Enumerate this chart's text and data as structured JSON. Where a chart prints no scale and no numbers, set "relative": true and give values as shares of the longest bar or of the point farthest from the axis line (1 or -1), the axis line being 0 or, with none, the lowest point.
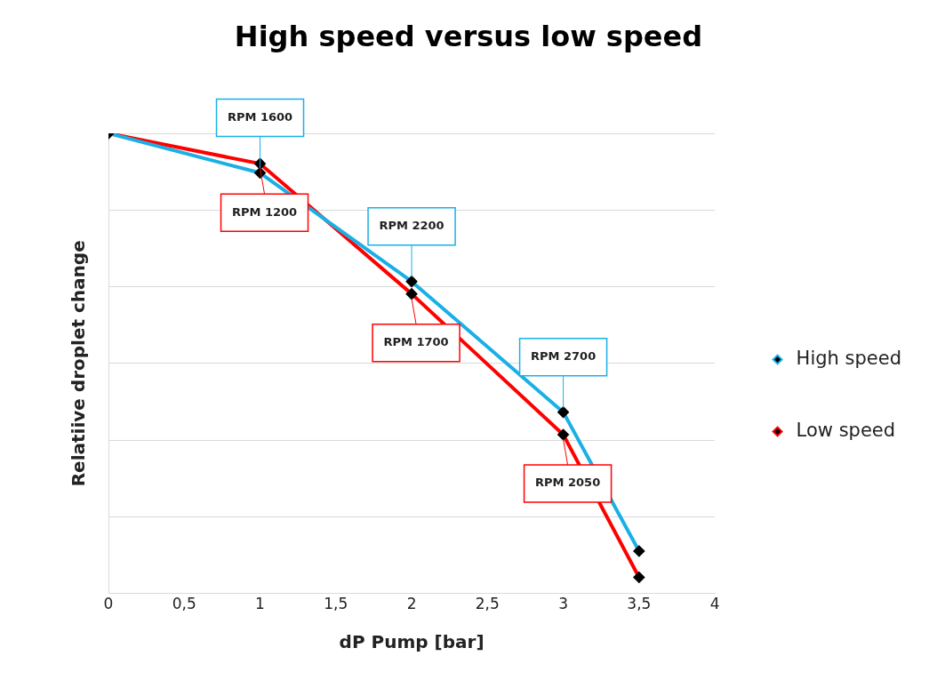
{
  "chart_data": {
    "type": "line",
    "title": "High speed versus low speed",
    "xlabel": "dP Pump [bar]",
    "ylabel": "Relatiive droplet change",
    "relative": true,
    "x": [
      0,
      1,
      2,
      3,
      3.5
    ],
    "series": [
      {
        "name": "High speed",
        "color": "#1ab0e6",
        "values": [
          1,
          0.914,
          0.678,
          0.394,
          0.092
        ]
      },
      {
        "name": "Low speed",
        "color": "#ff0000",
        "values": [
          1,
          0.934,
          0.651,
          0.345,
          0.035
        ]
      }
    ],
    "xlim": [
      0,
      4
    ],
    "xticks": [
      0,
      {
        "value": 0.5,
        "label": "0,5"
      },
      1,
      {
        "value": 1.5,
        "label": "1,5"
      },
      2,
      {
        "value": 2.5,
        "label": "2,5"
      },
      3,
      {
        "value": 3.5,
        "label": "3,5"
      },
      4
    ],
    "annotations": [
      {
        "text": "RPM 1600",
        "x": 1,
        "y": 0.914
      },
      {
        "text": "RPM 2200",
        "x": 2,
        "y": 0.678
      },
      {
        "text": "RPM 2700",
        "x": 3,
        "y": 0.394
      },
      {
        "text": "RPM 1200",
        "x": 1,
        "y": 0.934
      },
      {
        "text": "RPM 1700",
        "x": 2,
        "y": 0.651
      },
      {
        "text": "RPM 2050",
        "x": 3,
        "y": 0.345
      }
    ],
    "grid": "y",
    "legend": "right",
    "marker": "diamond",
    "line_style": "solid"
  }
}
